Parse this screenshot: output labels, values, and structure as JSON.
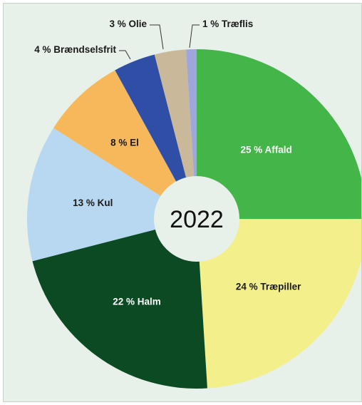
{
  "chart_data": {
    "type": "pie",
    "title": "",
    "center_label": "2022",
    "slices": [
      {
        "label": "25 % Affald",
        "value": 25,
        "color": "#44b649",
        "text_color": "#ffffff",
        "label_pos": "inside"
      },
      {
        "label": "24 % Træpiller",
        "value": 24,
        "color": "#f3ef8a",
        "text_color": "#1a1a1a",
        "label_pos": "inside"
      },
      {
        "label": "22 % Halm",
        "value": 22,
        "color": "#0b4a23",
        "text_color": "#ffffff",
        "label_pos": "inside"
      },
      {
        "label": "13 % Kul",
        "value": 13,
        "color": "#b7d8f0",
        "text_color": "#1a1a1a",
        "label_pos": "inside"
      },
      {
        "label": "8 % El",
        "value": 8,
        "color": "#f7b85c",
        "text_color": "#1a1a1a",
        "label_pos": "inside"
      },
      {
        "label": "4 % Brændselsfrit",
        "value": 4,
        "color": "#2f4fa6",
        "text_color": "#1a1a1a",
        "label_pos": "outside"
      },
      {
        "label": "3 % Olie",
        "value": 3,
        "color": "#c9b99a",
        "text_color": "#1a1a1a",
        "label_pos": "outside"
      },
      {
        "label": "1 % Træflis",
        "value": 1,
        "color": "#9ea7dc",
        "text_color": "#1a1a1a",
        "label_pos": "outside"
      }
    ],
    "legend": "none"
  }
}
